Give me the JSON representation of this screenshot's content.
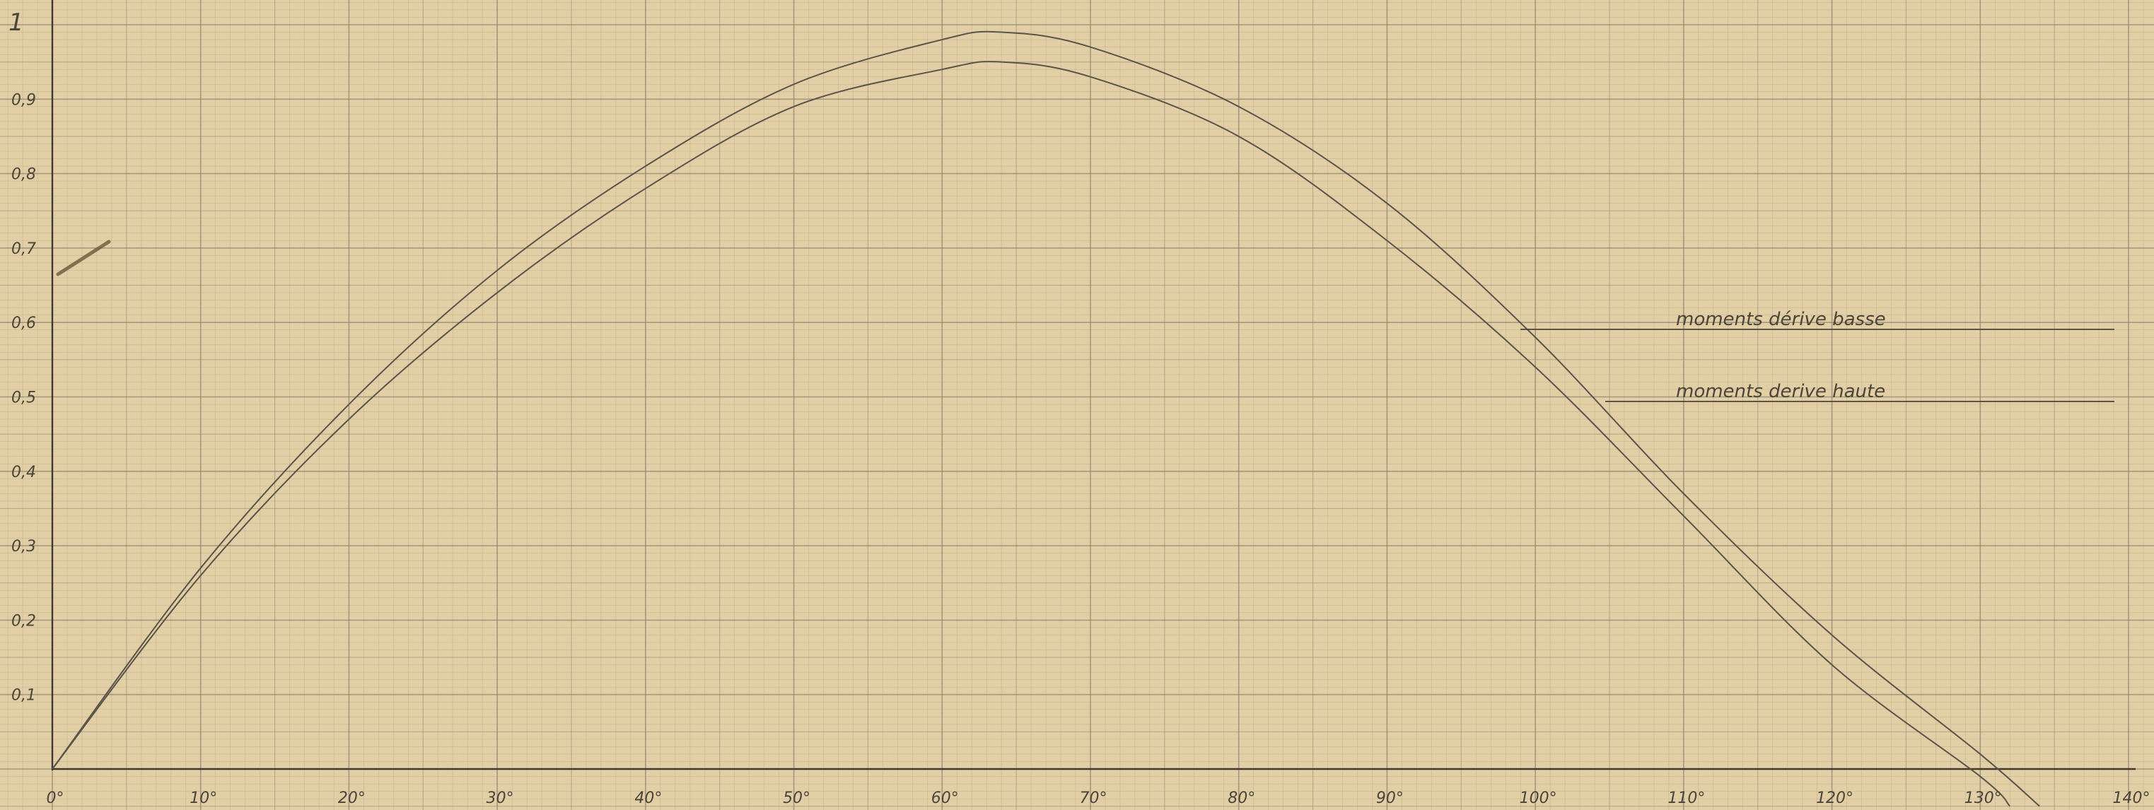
{
  "chart_data": {
    "type": "line",
    "title": "",
    "xlabel": "",
    "ylabel": "",
    "xlim": [
      0,
      140
    ],
    "ylim": [
      0,
      1
    ],
    "grid": true,
    "x_ticks": [
      0,
      10,
      20,
      30,
      40,
      50,
      60,
      70,
      80,
      90,
      100,
      110,
      120,
      130,
      140
    ],
    "x_tick_labels": [
      "0°",
      "10°",
      "20°",
      "30°",
      "40°",
      "50°",
      "60°",
      "70°",
      "80°",
      "90°",
      "100°",
      "110°",
      "120°",
      "130°",
      "140°"
    ],
    "y_ticks": [
      0.1,
      0.2,
      0.3,
      0.4,
      0.5,
      0.6,
      0.7,
      0.8,
      0.9,
      1
    ],
    "y_tick_labels": [
      "0,1",
      "0,2",
      "0,3",
      "0,4",
      "0,5",
      "0,6",
      "0,7",
      "0,8",
      "0,9",
      "1"
    ],
    "series": [
      {
        "name": "moments dérive basse",
        "color": "#5a5548",
        "x": [
          0,
          10,
          20,
          30,
          40,
          50,
          60,
          64,
          70,
          80,
          90,
          100,
          110,
          120,
          130,
          134
        ],
        "y": [
          0,
          0.27,
          0.49,
          0.67,
          0.81,
          0.92,
          0.98,
          0.99,
          0.97,
          0.89,
          0.76,
          0.58,
          0.37,
          0.18,
          0.02,
          -0.05
        ]
      },
      {
        "name": "moments derive haute",
        "color": "#5a5548",
        "x": [
          0,
          10,
          20,
          30,
          40,
          50,
          60,
          64,
          70,
          80,
          90,
          100,
          110,
          120,
          130,
          132
        ],
        "y": [
          0,
          0.26,
          0.47,
          0.64,
          0.78,
          0.89,
          0.94,
          0.95,
          0.93,
          0.85,
          0.71,
          0.54,
          0.34,
          0.14,
          -0.01,
          -0.05
        ]
      }
    ],
    "annotations": [
      {
        "text": "moments dérive basse",
        "series": 0
      },
      {
        "text": "moments derive haute",
        "series": 1
      }
    ]
  }
}
